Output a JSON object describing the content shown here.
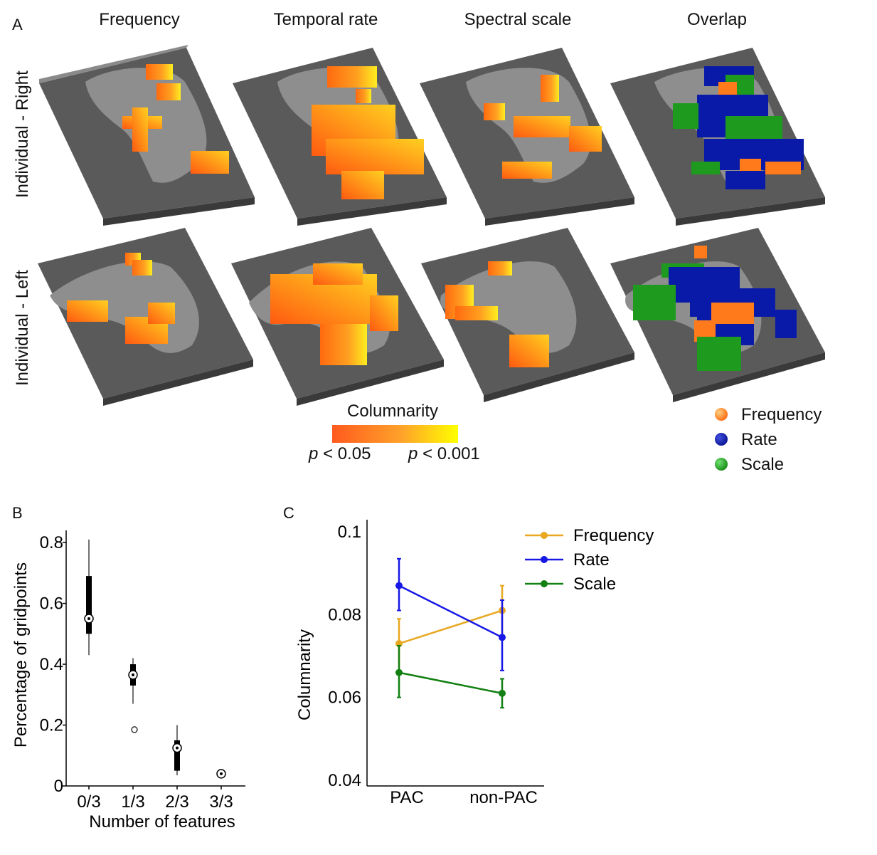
{
  "panel_a": {
    "letter": "A",
    "columns": [
      "Frequency",
      "Temporal rate",
      "Spectral scale",
      "Overlap"
    ],
    "rows": [
      "Individual - Right",
      "Individual - Left"
    ],
    "colorbar": {
      "title": "Columnarity",
      "low_symbol": "p",
      "low_text": " < 0.05",
      "high_symbol": "p",
      "high_text": " < 0.001",
      "low_color": "#ff5a1e",
      "high_color": "#ffff00"
    },
    "overlap_legend": [
      {
        "label": "Frequency",
        "color": "#ff7a1a"
      },
      {
        "label": "Rate",
        "color": "#0a1aa8"
      },
      {
        "label": "Scale",
        "color": "#1e9a1e"
      }
    ]
  },
  "chart_data": [
    {
      "panel": "B",
      "type": "box",
      "xlabel": "Number of features",
      "ylabel": "Percentage of gridpoints",
      "categories": [
        "0/3",
        "1/3",
        "2/3",
        "3/3"
      ],
      "yticks": [
        "0",
        "0.2",
        "0.4",
        "0.6",
        "0.8"
      ],
      "ylim": [
        0,
        0.84
      ],
      "boxes": [
        {
          "category": "0/3",
          "whisker_low": 0.43,
          "q1": 0.5,
          "median": 0.55,
          "q3": 0.69,
          "whisker_high": 0.81,
          "outliers": []
        },
        {
          "category": "1/3",
          "whisker_low": 0.27,
          "q1": 0.33,
          "median": 0.365,
          "q3": 0.4,
          "whisker_high": 0.42,
          "outliers": [
            0.185
          ]
        },
        {
          "category": "2/3",
          "whisker_low": 0.035,
          "q1": 0.05,
          "median": 0.125,
          "q3": 0.15,
          "whisker_high": 0.2,
          "outliers": []
        },
        {
          "category": "3/3",
          "whisker_low": 0.04,
          "q1": 0.04,
          "median": 0.04,
          "q3": 0.04,
          "whisker_high": 0.04,
          "outliers": []
        }
      ]
    },
    {
      "panel": "C",
      "type": "line",
      "ylabel": "Columnarity",
      "xlabel": "",
      "categories": [
        "PAC",
        "non-PAC"
      ],
      "yticks": [
        "0.04",
        "0.06",
        "0.08",
        "0.1"
      ],
      "ylim": [
        0.04,
        0.1
      ],
      "series": [
        {
          "name": "Frequency",
          "color": "#e8a820",
          "values": [
            0.073,
            0.081
          ],
          "err_low": [
            0.0665,
            0.075
          ],
          "err_high": [
            0.079,
            0.087
          ]
        },
        {
          "name": "Rate",
          "color": "#1818e6",
          "values": [
            0.087,
            0.0745
          ],
          "err_low": [
            0.081,
            0.0665
          ],
          "err_high": [
            0.0935,
            0.0835
          ]
        },
        {
          "name": "Scale",
          "color": "#128012",
          "values": [
            0.066,
            0.061
          ],
          "err_low": [
            0.06,
            0.0575
          ],
          "err_high": [
            0.0725,
            0.0645
          ]
        }
      ]
    }
  ]
}
